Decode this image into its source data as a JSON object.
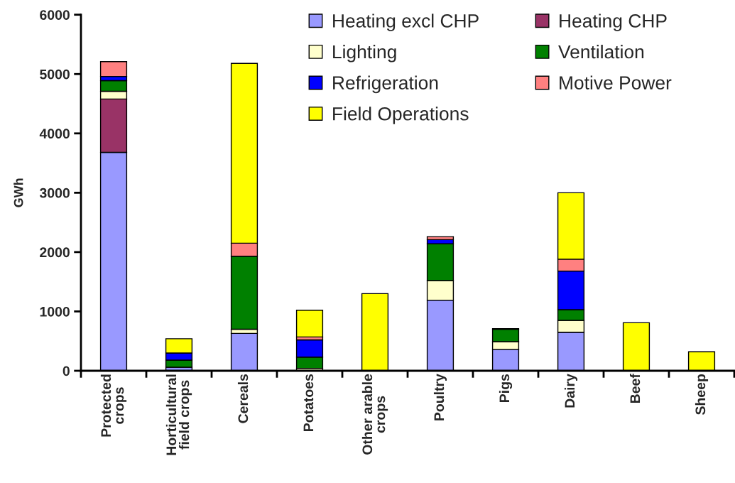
{
  "chart_data": {
    "type": "bar",
    "stacked": true,
    "ylabel": "GWh",
    "categories": [
      "Protected\ncrops",
      "Horticultural\nfield crops",
      "Cereals",
      "Potatoes",
      "Other arable\ncrops",
      "Poultry",
      "Pigs",
      "Dairy",
      "Beef",
      "Sheep"
    ],
    "series": [
      {
        "name": "Heating excl CHP",
        "color": "#9999ff",
        "values": [
          3680,
          60,
          630,
          null,
          null,
          1190,
          360,
          650,
          null,
          null
        ]
      },
      {
        "name": "Heating CHP",
        "color": "#993366",
        "values": [
          900,
          null,
          null,
          null,
          null,
          null,
          null,
          null,
          null,
          null
        ]
      },
      {
        "name": "Lighting",
        "color": "#ffffcc",
        "values": [
          130,
          null,
          70,
          40,
          null,
          330,
          130,
          200,
          null,
          null
        ]
      },
      {
        "name": "Ventilation",
        "color": "#008000",
        "values": [
          180,
          120,
          1230,
          190,
          null,
          620,
          210,
          180,
          null,
          null
        ]
      },
      {
        "name": "Refrigeration",
        "color": "#0000ff",
        "values": [
          70,
          120,
          null,
          290,
          null,
          70,
          10,
          650,
          null,
          null
        ]
      },
      {
        "name": "Motive Power",
        "color": "#ff8080",
        "values": [
          250,
          null,
          220,
          50,
          null,
          50,
          null,
          200,
          null,
          null
        ]
      },
      {
        "name": "Field Operations",
        "color": "#ffff00",
        "values": [
          null,
          240,
          3030,
          450,
          1300,
          null,
          null,
          1120,
          810,
          320
        ]
      }
    ],
    "ylim": [
      0,
      6000
    ],
    "yticks": [
      0,
      1000,
      2000,
      3000,
      4000,
      5000,
      6000
    ],
    "legend": "top right"
  }
}
